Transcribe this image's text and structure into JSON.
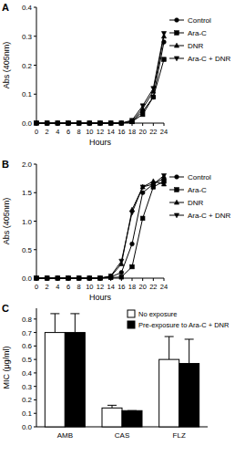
{
  "chart_data": [
    {
      "type": "line",
      "title": "A",
      "x_label": "Hours",
      "y_label": "Abs (405nm)",
      "x": [
        0,
        2,
        4,
        6,
        8,
        10,
        12,
        14,
        16,
        18,
        20,
        22,
        24
      ],
      "xlim": [
        0,
        24
      ],
      "xticks": [
        0,
        2,
        4,
        6,
        8,
        10,
        12,
        14,
        16,
        18,
        20,
        22,
        24
      ],
      "ylim": [
        0,
        0.4
      ],
      "yticks": [
        {
          "value": 0,
          "label": "0.0"
        },
        {
          "value": 0.1,
          "label": "0.1"
        },
        {
          "value": 0.2,
          "label": "0.2"
        },
        {
          "value": 0.3,
          "label": "0.3"
        },
        {
          "value": 0.4,
          "label": "0.4"
        }
      ],
      "legend": "right",
      "series": [
        {
          "name": "Control",
          "color": "#000000",
          "marker": "circle",
          "values": [
            0,
            0,
            0,
            0,
            0,
            0,
            0,
            0,
            0,
            0.005,
            0.04,
            0.09,
            0.28
          ]
        },
        {
          "name": "Ara-C",
          "color": "#000000",
          "marker": "square",
          "values": [
            0,
            0,
            0,
            0,
            0,
            0,
            0,
            0,
            0,
            0.005,
            0.03,
            0.09,
            0.22
          ]
        },
        {
          "name": "DNR",
          "color": "#000000",
          "marker": "triangle-up",
          "values": [
            0,
            0,
            0,
            0,
            0,
            0,
            0,
            0,
            0,
            0.005,
            0.05,
            0.11,
            0.3
          ]
        },
        {
          "name": "Ara-C + DNR",
          "color": "#000000",
          "marker": "triangle-down",
          "values": [
            0,
            0,
            0,
            0,
            0,
            0,
            0,
            0,
            0,
            0.01,
            0.06,
            0.12,
            0.31
          ]
        }
      ]
    },
    {
      "type": "line",
      "title": "B",
      "x_label": "Hours",
      "y_label": "Abs (405nm)",
      "x": [
        0,
        2,
        4,
        6,
        8,
        10,
        12,
        14,
        16,
        18,
        20,
        22,
        24
      ],
      "xlim": [
        0,
        24
      ],
      "xticks": [
        0,
        2,
        4,
        6,
        8,
        10,
        12,
        14,
        16,
        18,
        20,
        22,
        24
      ],
      "ylim": [
        0,
        2
      ],
      "yticks": [
        {
          "value": 0,
          "label": "0.0"
        },
        {
          "value": 0.5,
          "label": "0.5"
        },
        {
          "value": 1,
          "label": "1.0"
        },
        {
          "value": 1.5,
          "label": "1.5"
        },
        {
          "value": 2,
          "label": "2.0"
        }
      ],
      "legend": "right",
      "series": [
        {
          "name": "Control",
          "color": "#000000",
          "marker": "circle",
          "values": [
            0,
            0,
            0,
            0,
            0,
            0,
            0,
            0.02,
            0.1,
            0.6,
            1.5,
            1.65,
            1.75
          ]
        },
        {
          "name": "Ara-C",
          "color": "#000000",
          "marker": "square",
          "values": [
            0,
            0,
            0,
            0,
            0,
            0,
            0,
            0.01,
            0.02,
            0.2,
            1.05,
            1.6,
            1.7
          ]
        },
        {
          "name": "DNR",
          "color": "#000000",
          "marker": "triangle-up",
          "values": [
            0,
            0,
            0,
            0,
            0,
            0,
            0,
            0.03,
            0.25,
            1.2,
            1.6,
            1.7,
            1.65
          ]
        },
        {
          "name": "Ara-C + DNR",
          "color": "#000000",
          "marker": "triangle-down",
          "values": [
            0,
            0,
            0,
            0,
            0,
            0,
            0,
            0.04,
            0.3,
            1.15,
            1.6,
            1.65,
            1.8
          ]
        }
      ]
    },
    {
      "type": "bar",
      "title": "C",
      "y_label": "MIC (μg/ml)",
      "categories": [
        "AMB",
        "CAS",
        "FLZ"
      ],
      "ylim": [
        0,
        0.88
      ],
      "yticks": [
        {
          "value": 0,
          "label": "0.0"
        },
        0.1,
        0.2,
        0.3,
        0.4,
        0.5,
        0.6,
        0.7,
        0.8
      ],
      "legend": "top-right",
      "series": [
        {
          "name": "No exposure",
          "color": "#ffffff",
          "values": [
            0.7,
            0.14,
            0.5
          ],
          "errors": [
            0.14,
            0.02,
            0.17
          ]
        },
        {
          "name": "Pre-exposure to Ara-C + DNR",
          "color": "#000000",
          "values": [
            0.7,
            0.12,
            0.47
          ],
          "errors": [
            0.14,
            0,
            0.18
          ]
        }
      ]
    }
  ]
}
